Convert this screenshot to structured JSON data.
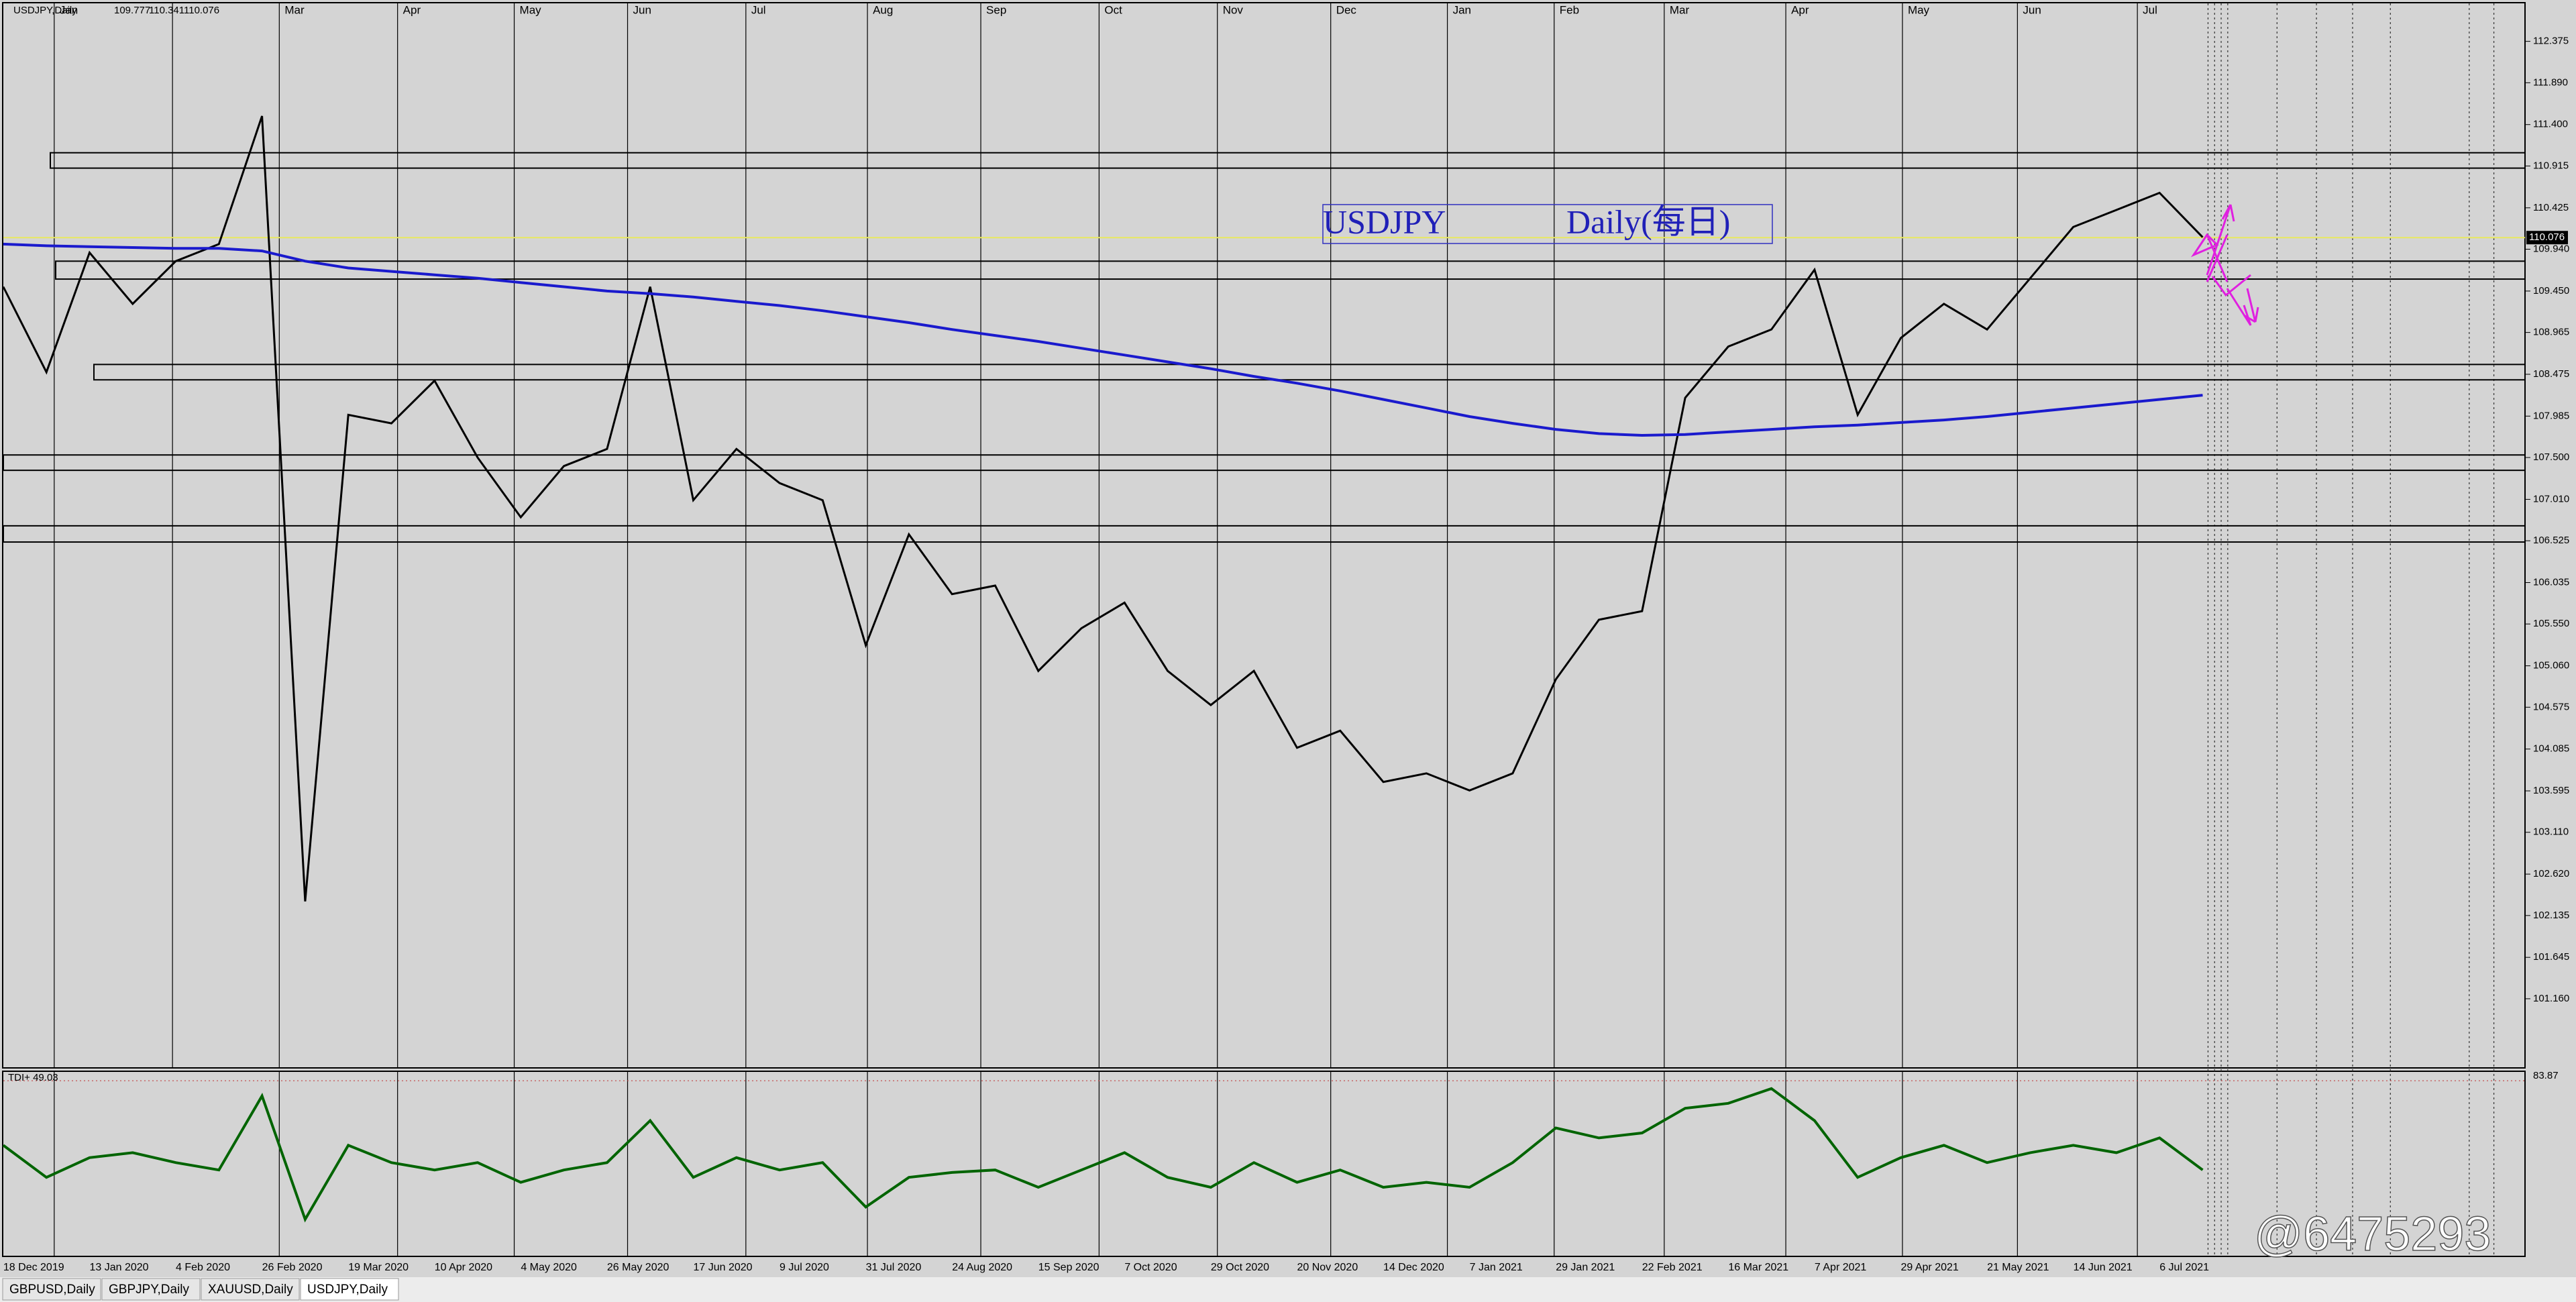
{
  "chart_data": {
    "type": "line",
    "header": {
      "symbol": "USDJPY,Daily",
      "open": "109.777",
      "high": "110.341",
      "close": "110.076"
    },
    "annotation": [
      "USDJPY",
      "Daily(每日)"
    ],
    "months": [
      "Jan",
      "Mar",
      "Apr",
      "May",
      "Jun",
      "Jul",
      "Aug",
      "Sep",
      "Oct",
      "Nov",
      "Dec",
      "Jan",
      "Feb",
      "Mar",
      "Apr",
      "May",
      "Jun",
      "Jul"
    ],
    "categories": [
      "18 Dec 2019",
      null,
      "13 Jan 2020",
      null,
      "4 Feb 2020",
      null,
      "26 Feb 2020",
      null,
      "19 Mar 2020",
      null,
      "10 Apr 2020",
      null,
      "4 May 2020",
      null,
      "26 May 2020",
      null,
      "17 Jun 2020",
      null,
      "9 Jul 2020",
      null,
      "31 Jul 2020",
      null,
      "24 Aug 2020",
      null,
      "15 Sep 2020",
      null,
      "7 Oct 2020",
      null,
      "29 Oct 2020",
      null,
      "20 Nov 2020",
      null,
      "14 Dec 2020",
      null,
      "7 Jan 2021",
      null,
      "29 Jan 2021",
      null,
      "22 Feb 2021",
      null,
      "16 Mar 2021",
      null,
      "7 Apr 2021",
      null,
      "29 Apr 2021",
      null,
      "21 May 2021",
      null,
      "14 Jun 2021",
      null,
      "6 Jul 2021",
      null
    ],
    "series": [
      {
        "name": "Close",
        "color": "#000000",
        "values": [
          109.5,
          108.5,
          109.9,
          109.3,
          109.8,
          110.0,
          111.5,
          102.3,
          108.0,
          107.9,
          108.4,
          107.5,
          106.8,
          107.4,
          107.6,
          109.5,
          107.0,
          107.6,
          107.2,
          107.0,
          105.3,
          106.6,
          105.9,
          106.0,
          105.0,
          105.5,
          105.8,
          105.0,
          104.6,
          105.0,
          104.1,
          104.3,
          103.7,
          103.8,
          103.6,
          103.8,
          104.9,
          105.6,
          105.7,
          108.2,
          108.8,
          109.0,
          109.7,
          108.0,
          108.9,
          109.3,
          109.0,
          109.6,
          110.2,
          110.4,
          110.6,
          110.08
        ]
      },
      {
        "name": "MA",
        "color": "#1a1acd",
        "values": [
          110.0,
          109.98,
          109.97,
          109.96,
          109.95,
          109.95,
          109.92,
          109.8,
          109.72,
          109.68,
          109.64,
          109.6,
          109.55,
          109.5,
          109.45,
          109.42,
          109.38,
          109.33,
          109.28,
          109.22,
          109.15,
          109.08,
          109.0,
          108.93,
          108.86,
          108.78,
          108.7,
          108.62,
          108.54,
          108.45,
          108.37,
          108.28,
          108.18,
          108.08,
          107.98,
          107.9,
          107.83,
          107.78,
          107.76,
          107.77,
          107.8,
          107.83,
          107.86,
          107.88,
          107.91,
          107.94,
          107.98,
          108.03,
          108.08,
          108.13,
          108.18,
          108.23
        ]
      }
    ],
    "zones": [
      [
        111.07,
        110.89
      ],
      [
        109.8,
        109.59
      ],
      [
        108.59,
        108.41
      ],
      [
        107.53,
        107.35
      ],
      [
        106.7,
        106.51
      ]
    ],
    "current_price": {
      "value": 110.076,
      "label": "110.076"
    },
    "ylim": [
      100.35,
      112.82
    ],
    "yticks": [
      112.375,
      {
        "value": 111.89,
        "label": "111.890"
      },
      {
        "value": 111.4,
        "label": "111.400"
      },
      110.915,
      110.425,
      {
        "value": 109.94,
        "label": "109.940"
      },
      {
        "value": 109.45,
        "label": "109.450"
      },
      108.965,
      108.475,
      107.985,
      {
        "value": 107.5,
        "label": "107.500"
      },
      {
        "value": 107.01,
        "label": "107.010"
      },
      106.525,
      106.035,
      {
        "value": 105.55,
        "label": "105.550"
      },
      {
        "value": 105.06,
        "label": "105.060"
      },
      104.575,
      104.085,
      103.595,
      {
        "value": 103.11,
        "label": "103.110"
      },
      {
        "value": 102.62,
        "label": "102.620"
      },
      102.135,
      101.645,
      {
        "value": 101.16,
        "label": "101.160"
      }
    ],
    "indicator": {
      "label": "TDI+ 49.03",
      "ylim": [
        10,
        85
      ],
      "yticks": [
        83.87
      ],
      "series": [
        {
          "name": "RSI",
          "color": "#006400",
          "values": [
            55,
            42,
            50,
            52,
            48,
            45,
            75,
            25,
            55,
            48,
            45,
            48,
            40,
            45,
            48,
            65,
            42,
            50,
            45,
            48,
            30,
            42,
            44,
            45,
            38,
            45,
            52,
            42,
            38,
            48,
            40,
            45,
            38,
            40,
            38,
            48,
            62,
            58,
            60,
            70,
            72,
            78,
            65,
            42,
            50,
            55,
            48,
            52,
            55,
            52,
            58,
            45
          ]
        }
      ]
    },
    "tabs": [
      "GBPUSD,Daily",
      "GBPJPY,Daily",
      "XAUUSD,Daily",
      "USDJPY,Daily"
    ],
    "watermark": "@6475293"
  }
}
